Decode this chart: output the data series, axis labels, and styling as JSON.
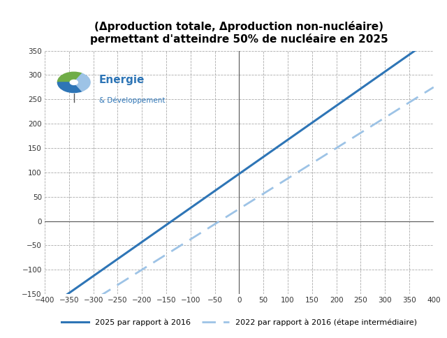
{
  "title_line1": "(Δproduction totale, Δproduction non-nucléaire)",
  "title_line2": "permettant d'atteindre 50% de nucléaire en 2025",
  "xlim": [
    -400,
    400
  ],
  "ylim": [
    -150,
    350
  ],
  "xticks": [
    -400,
    -350,
    -300,
    -250,
    -200,
    -150,
    -100,
    -50,
    0,
    50,
    100,
    150,
    200,
    250,
    300,
    350,
    400
  ],
  "yticks": [
    -150,
    -100,
    -50,
    0,
    50,
    100,
    150,
    200,
    250,
    300,
    350
  ],
  "line1_slope": 0.7,
  "line1_intercept": 97,
  "line2_slope": 0.625,
  "line2_intercept": 25,
  "line1_color": "#2e75b6",
  "line2_color": "#9dc3e6",
  "line1_label": "2025 par rapport à 2016",
  "line2_label": "2022 par rapport à 2016 (étape intermédiaire)",
  "background_color": "#ffffff",
  "grid_color": "#aaaaaa",
  "title_color": "#000000",
  "axis_color": "#555555",
  "logo_text_energie": "Energie",
  "logo_text_dev": "& Développement",
  "logo_green": "#70ad47",
  "logo_blue": "#2e75b6",
  "logo_lightblue": "#9dc3e6"
}
